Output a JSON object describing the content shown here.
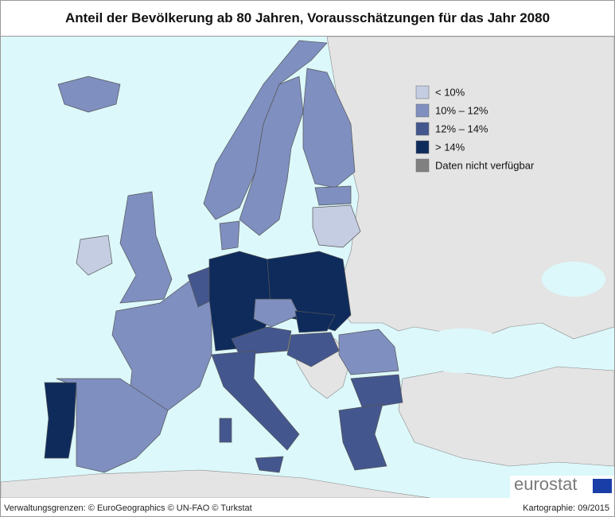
{
  "title": "Anteil der Bevölkerung ab 80 Jahren, Vorausschätzungen für das Jahr 2080",
  "legend": [
    {
      "label": "< 10%",
      "color": "#c5cde2"
    },
    {
      "label": "10% – 12%",
      "color": "#7f8fc0"
    },
    {
      "label": "12% – 14%",
      "color": "#43568e"
    },
    {
      "label": "> 14%",
      "color": "#0e2b5c"
    },
    {
      "label": "Daten nicht verfügbar",
      "color": "#808080"
    }
  ],
  "logo": "eurostat",
  "footer": {
    "left": "Verwaltungsgrenzen: © EuroGeographics © UN-FAO © Turkstat",
    "right": "Kartographie: 09/2015"
  }
}
